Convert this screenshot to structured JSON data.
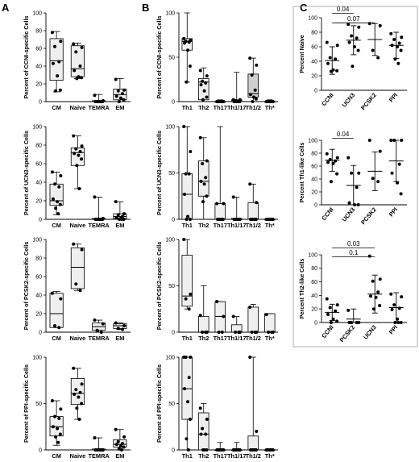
{
  "panel_letters": [
    "A",
    "B",
    "C"
  ],
  "chart_data": [
    {
      "id": "A1",
      "type": "box",
      "ylabel": "Percent of CCNI-specific Cells",
      "ylim": [
        0,
        100
      ],
      "yticks": [
        0,
        20,
        40,
        60,
        80,
        100
      ],
      "categories": [
        "CM",
        "Naive",
        "TEMRA",
        "EM"
      ],
      "fills": [
        "#efefef",
        "#efefef",
        "#efefef",
        "#efefef"
      ],
      "boxes": [
        {
          "min": 11,
          "q1": 24,
          "median": 46,
          "q3": 71,
          "max": 79
        },
        {
          "min": 26,
          "q1": 28,
          "median": 37,
          "q3": 63,
          "max": 66
        },
        {
          "min": 0,
          "q1": 0,
          "median": 0,
          "q3": 1,
          "max": 8
        },
        {
          "min": 0,
          "q1": 2,
          "median": 8,
          "q3": 14,
          "max": 26
        }
      ],
      "points": [
        [
          78,
          68,
          62,
          45,
          43,
          29,
          13,
          12
        ],
        [
          65,
          61,
          56,
          40,
          35,
          28,
          27,
          26
        ],
        [
          7,
          1,
          0,
          0,
          0,
          0,
          0,
          0
        ],
        [
          25,
          13,
          12,
          9,
          6,
          4,
          2,
          0
        ]
      ]
    },
    {
      "id": "B1",
      "type": "box",
      "ylabel": "Percent of CCNI-specific Cells",
      "ylim": [
        0,
        100
      ],
      "yticks": [
        0,
        50,
        100
      ],
      "categories": [
        "Th1",
        "Th2",
        "Th17",
        "Th1/17",
        "Th1/2",
        "Th*"
      ],
      "fills": [
        "#efefef",
        "#efefef",
        "#efefef",
        "#efefef",
        "#cfcfcf",
        "#efefef"
      ],
      "boxes": [
        {
          "min": 22,
          "q1": 58,
          "median": 68,
          "q3": 71,
          "max": 100
        },
        {
          "min": 0,
          "q1": 2,
          "median": 22,
          "q3": 26,
          "max": 38
        },
        {
          "min": 0,
          "q1": 0,
          "median": 0,
          "q3": 0,
          "max": 2
        },
        {
          "min": 0,
          "q1": 0,
          "median": 0,
          "q3": 2,
          "max": 33
        },
        {
          "min": 0,
          "q1": 5,
          "median": 9,
          "q3": 31,
          "max": 49
        },
        {
          "min": 0,
          "q1": 0,
          "median": 0,
          "q3": 0,
          "max": 2
        }
      ],
      "points": [
        [
          71,
          69,
          68,
          67,
          66,
          58,
          40,
          22
        ],
        [
          35,
          29,
          23,
          21,
          19,
          12,
          5,
          2
        ],
        [
          0,
          0,
          0,
          0,
          0,
          0,
          0,
          0
        ],
        [
          2,
          2,
          1,
          0,
          0,
          0,
          0,
          0
        ],
        [
          49,
          41,
          30,
          13,
          8,
          5,
          3,
          0
        ],
        [
          0,
          0,
          0,
          0,
          0,
          0,
          0,
          0
        ]
      ]
    },
    {
      "id": "C1",
      "type": "scatter_mean_sd",
      "ylabel": "Percent Naive",
      "ylim": [
        0,
        100
      ],
      "yticks": [
        0,
        20,
        40,
        60,
        80,
        100
      ],
      "categories": [
        "CCNI",
        "UCN3",
        "PCSK2",
        "PPI"
      ],
      "groups": [
        {
          "mean": 41,
          "sd": 19,
          "points": [
            66,
            62,
            45,
            43,
            37,
            28,
            27,
            26
          ]
        },
        {
          "mean": 69,
          "sd": 20,
          "points": [
            91,
            87,
            75,
            72,
            66,
            60,
            55,
            33
          ]
        },
        {
          "mean": 70,
          "sd": 22,
          "points": [
            92,
            89,
            55,
            45
          ]
        },
        {
          "mean": 62,
          "sd": 18,
          "points": [
            78,
            73,
            70,
            65,
            62,
            60,
            55,
            43,
            37
          ]
        }
      ],
      "annotations": [
        {
          "text": "0.04",
          "from": 0,
          "to": 1,
          "y": 106
        },
        {
          "text": "0.07",
          "from": 0,
          "to": 2,
          "y": 93
        }
      ]
    },
    {
      "id": "A2",
      "type": "box",
      "ylabel": "Percent of UCN3-specific Cells",
      "ylim": [
        0,
        100
      ],
      "yticks": [
        0,
        20,
        40,
        60,
        80,
        100
      ],
      "categories": [
        "CM",
        "Naive",
        "TEMRA",
        "EM"
      ],
      "fills": [
        "#efefef",
        "#efefef",
        "#efefef",
        "#efefef"
      ],
      "boxes": [
        {
          "min": 5,
          "q1": 15,
          "median": 20,
          "q3": 38,
          "max": 51
        },
        {
          "min": 33,
          "q1": 58,
          "median": 72,
          "q3": 77,
          "max": 90
        },
        {
          "min": 0,
          "q1": 0,
          "median": 0,
          "q3": 1,
          "max": 24
        },
        {
          "min": 0,
          "q1": 1,
          "median": 3,
          "q3": 6,
          "max": 19
        }
      ],
      "points": [
        [
          51,
          47,
          38,
          35,
          22,
          19,
          16,
          12,
          6
        ],
        [
          90,
          79,
          76,
          73,
          71,
          69,
          65,
          58,
          33
        ],
        [
          24,
          1,
          0,
          0,
          0,
          0,
          0,
          0,
          0
        ],
        [
          19,
          6,
          5,
          3,
          2,
          1,
          0,
          0,
          0
        ]
      ]
    },
    {
      "id": "B2",
      "type": "box",
      "ylabel": "Percent of UCN3-specific Cells",
      "ylim": [
        0,
        100
      ],
      "yticks": [
        0,
        50,
        100
      ],
      "categories": [
        "Th1",
        "Th2",
        "Th17",
        "Th1/17",
        "Th1/2",
        "Th*"
      ],
      "fills": [
        "#efefef",
        "#efefef",
        "#efefef",
        "#efefef",
        "#efefef",
        "#efefef"
      ],
      "boxes": [
        {
          "min": 0,
          "q1": 0,
          "median": 27,
          "q3": 49,
          "max": 100
        },
        {
          "min": 0,
          "q1": 25,
          "median": 41,
          "q3": 63,
          "max": 88
        },
        {
          "min": 0,
          "q1": 0,
          "median": 0,
          "q3": 17,
          "max": 100
        },
        {
          "min": 0,
          "q1": 0,
          "median": 0,
          "q3": 1,
          "max": 24
        },
        {
          "min": 0,
          "q1": 0,
          "median": 0,
          "q3": 18,
          "max": 38
        },
        {
          "min": 0,
          "q1": 0,
          "median": 0,
          "q3": 0,
          "max": 1
        }
      ],
      "points": [
        [
          100,
          73,
          49,
          49,
          27,
          3,
          0,
          0
        ],
        [
          88,
          63,
          60,
          45,
          41,
          38,
          25,
          19
        ],
        [
          17,
          17,
          0,
          0,
          0,
          0,
          0,
          0
        ],
        [
          24,
          0,
          0,
          0,
          0,
          0,
          0,
          0
        ],
        [
          38,
          18,
          0,
          0,
          0,
          0,
          0,
          0
        ],
        [
          0,
          0,
          0,
          0,
          0,
          0,
          0,
          0
        ]
      ]
    },
    {
      "id": "C2",
      "type": "scatter_mean_sd",
      "ylabel": "Percent Th1-like Cells",
      "ylim": [
        0,
        100
      ],
      "yticks": [
        0,
        20,
        40,
        60,
        80,
        100
      ],
      "categories": [
        "CCNI",
        "UCN3",
        "PCSK2",
        "PPI"
      ],
      "groups": [
        {
          "mean": 69,
          "sd": 17,
          "points": [
            79,
            73,
            70,
            68,
            66,
            64,
            48,
            36
          ]
        },
        {
          "mean": 30,
          "sd": 31,
          "points": [
            73,
            49,
            49,
            27,
            3,
            0,
            0
          ]
        },
        {
          "mean": 52,
          "sd": 30,
          "points": [
            100,
            83,
            41,
            36
          ]
        },
        {
          "mean": 68,
          "sd": 32,
          "points": [
            100,
            100,
            100,
            63,
            49,
            34,
            17
          ]
        }
      ],
      "annotations": [
        {
          "text": "0.04",
          "from": 0,
          "to": 1,
          "y": 103
        }
      ]
    },
    {
      "id": "A3",
      "type": "box",
      "ylabel": "Percent of PCSK2-specific Cells",
      "ylim": [
        0,
        100
      ],
      "yticks": [
        0,
        20,
        40,
        60,
        80,
        100
      ],
      "categories": [
        "CM",
        "Naive",
        "TEMRA",
        "EM"
      ],
      "fills": [
        "#efefef",
        "#efefef",
        "#efefef",
        "#efefef"
      ],
      "boxes": [
        {
          "min": 5,
          "q1": 5,
          "median": 20,
          "q3": 42,
          "max": 44
        },
        {
          "min": 45,
          "q1": 47,
          "median": 70,
          "q3": 91,
          "max": 95
        },
        {
          "min": 0,
          "q1": 2,
          "median": 6,
          "q3": 10,
          "max": 13
        },
        {
          "min": 3,
          "q1": 4,
          "median": 7,
          "q3": 9,
          "max": 10
        }
      ],
      "points": [
        [
          42,
          36,
          7,
          5
        ],
        [
          95,
          89,
          52,
          45
        ],
        [
          13,
          9,
          2,
          0
        ],
        [
          10,
          7,
          4,
          3
        ]
      ]
    },
    {
      "id": "B3",
      "type": "box",
      "ylabel": "Percent of PCSK2-specific Cells",
      "ylim": [
        0,
        100
      ],
      "yticks": [
        0,
        50,
        100
      ],
      "categories": [
        "Th1",
        "Th2",
        "Th17",
        "Th1/17",
        "Th1/2",
        "Th*"
      ],
      "fills": [
        "#efefef",
        "#efefef",
        "#efefef",
        "#efefef",
        "#efefef",
        "#efefef"
      ],
      "boxes": [
        {
          "min": 25,
          "q1": 28,
          "median": 39,
          "q3": 83,
          "max": 100
        },
        {
          "min": 0,
          "q1": 0,
          "median": 0,
          "q3": 17,
          "max": 50
        },
        {
          "min": 0,
          "q1": 0,
          "median": 17,
          "q3": 33,
          "max": 33
        },
        {
          "min": 0,
          "q1": 0,
          "median": 0,
          "q3": 8,
          "max": 17
        },
        {
          "min": 0,
          "q1": 0,
          "median": 0,
          "q3": 27,
          "max": 30
        },
        {
          "min": 0,
          "q1": 0,
          "median": 0,
          "q3": 20,
          "max": 20
        }
      ],
      "points": [
        [
          100,
          41,
          36,
          25
        ],
        [
          18,
          0,
          0,
          0
        ],
        [
          33,
          17,
          0,
          0
        ],
        [
          17,
          0,
          0,
          0
        ],
        [
          27,
          0,
          0,
          0
        ],
        [
          19,
          0,
          0,
          0
        ]
      ]
    },
    {
      "id": "C3",
      "type": "scatter_mean_sd",
      "ylabel": "Percent Th2-like Cells",
      "ylim": [
        0,
        100
      ],
      "yticks": [
        0,
        20,
        40,
        60,
        80,
        100
      ],
      "categories": [
        "CCNI",
        "PCSK2",
        "UCN3",
        "PPI"
      ],
      "groups": [
        {
          "mean": 15,
          "sd": 12,
          "points": [
            35,
            26,
            22,
            17,
            12,
            5,
            2,
            0
          ]
        },
        {
          "mean": 5,
          "sd": 15,
          "points": [
            18,
            0,
            0,
            0,
            0
          ]
        },
        {
          "mean": 42,
          "sd": 28,
          "points": [
            98,
            64,
            61,
            45,
            39,
            37,
            25,
            20
          ]
        },
        {
          "mean": 22,
          "sd": 22,
          "points": [
            42,
            38,
            26,
            21,
            19,
            5,
            0,
            0,
            0
          ]
        }
      ],
      "annotations": [
        {
          "text": "0.03",
          "from": 0,
          "to": 2,
          "y": 110
        },
        {
          "text": "0.1",
          "from": 0,
          "to": 2,
          "y": 97
        }
      ]
    },
    {
      "id": "A4",
      "type": "box",
      "ylabel": "Percent of PPI-specific Cells",
      "ylim": [
        0,
        100
      ],
      "yticks": [
        0,
        50,
        100
      ],
      "categories": [
        "CM",
        "Naive",
        "TEMRA",
        "EM"
      ],
      "fills": [
        "#efefef",
        "#efefef",
        "#efefef",
        "#efefef"
      ],
      "boxes": [
        {
          "min": 5,
          "q1": 15,
          "median": 25,
          "q3": 36,
          "max": 53
        },
        {
          "min": 33,
          "q1": 49,
          "median": 61,
          "q3": 77,
          "max": 88
        },
        {
          "min": 0,
          "q1": 0,
          "median": 0,
          "q3": 1,
          "max": 13
        },
        {
          "min": 0,
          "q1": 3,
          "median": 6,
          "q3": 11,
          "max": 22
        }
      ],
      "points": [
        [
          53,
          44,
          36,
          34,
          25,
          23,
          17,
          14,
          8
        ],
        [
          88,
          71,
          65,
          62,
          60,
          57,
          50,
          45,
          33
        ],
        [
          13,
          0,
          0,
          0,
          0,
          0,
          0,
          0,
          0
        ],
        [
          22,
          14,
          9,
          7,
          6,
          4,
          3,
          1,
          0
        ]
      ]
    },
    {
      "id": "B4",
      "type": "box",
      "ylabel": "Percent of PPI-specific Cells",
      "ylim": [
        0,
        100
      ],
      "yticks": [
        0,
        50,
        100
      ],
      "categories": [
        "Th1",
        "Th2",
        "Th17",
        "Th1/17",
        "Th1/2",
        "Th*"
      ],
      "fills": [
        "#efefef",
        "#efefef",
        "#efefef",
        "#efefef",
        "#efefef",
        "#efefef"
      ],
      "boxes": [
        {
          "min": 0,
          "q1": 33,
          "median": 66,
          "q3": 100,
          "max": 100
        },
        {
          "min": 0,
          "q1": 0,
          "median": 17,
          "q3": 40,
          "max": 50
        },
        {
          "min": 0,
          "q1": 0,
          "median": 0,
          "q3": 0,
          "max": 8
        },
        {
          "min": 0,
          "q1": 0,
          "median": 0,
          "q3": 0,
          "max": 8
        },
        {
          "min": 0,
          "q1": 0,
          "median": 0,
          "q3": 15,
          "max": 100
        },
        {
          "min": 0,
          "q1": 0,
          "median": 0,
          "q3": 0,
          "max": 1
        }
      ],
      "points": [
        [
          100,
          100,
          100,
          78,
          66,
          52,
          33,
          12,
          0
        ],
        [
          45,
          33,
          23,
          17,
          17,
          0,
          0,
          0
        ],
        [
          0,
          0,
          0,
          0,
          0,
          0,
          0,
          0
        ],
        [
          0,
          0,
          0,
          0,
          0,
          0,
          0,
          0
        ],
        [
          100,
          20,
          0,
          0,
          0,
          0,
          0,
          0
        ],
        [
          0,
          0,
          0,
          0,
          0,
          0,
          0,
          0
        ]
      ]
    }
  ]
}
